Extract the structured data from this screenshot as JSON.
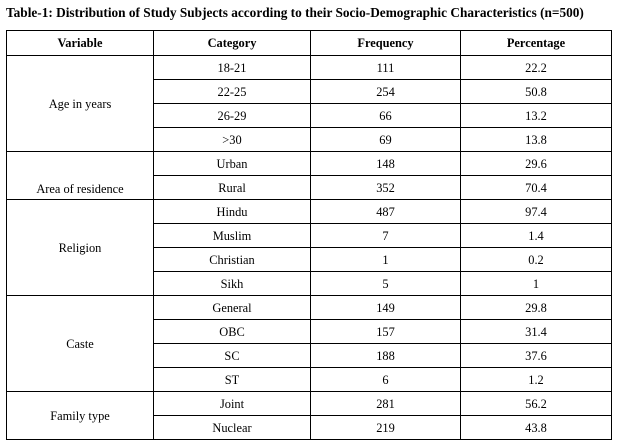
{
  "caption": "Table-1: Distribution of Study Subjects according to their Socio-Demographic Characteristics (n=500)",
  "headers": {
    "variable": "Variable",
    "category": "Category",
    "frequency": "Frequency",
    "percentage": "Percentage"
  },
  "groups": [
    {
      "variable": "Age in years",
      "rows": [
        {
          "category": "18-21",
          "frequency": "111",
          "percentage": "22.2"
        },
        {
          "category": "22-25",
          "frequency": "254",
          "percentage": "50.8"
        },
        {
          "category": "26-29",
          "frequency": "66",
          "percentage": "13.2"
        },
        {
          "category": ">30",
          "frequency": "69",
          "percentage": "13.8"
        }
      ]
    },
    {
      "variable": "Area of residence",
      "rows": [
        {
          "category": "Urban",
          "frequency": "148",
          "percentage": "29.6"
        },
        {
          "category": "Rural",
          "frequency": "352",
          "percentage": "70.4"
        }
      ]
    },
    {
      "variable": "Religion",
      "rows": [
        {
          "category": "Hindu",
          "frequency": "487",
          "percentage": "97.4"
        },
        {
          "category": "Muslim",
          "frequency": "7",
          "percentage": "1.4"
        },
        {
          "category": "Christian",
          "frequency": "1",
          "percentage": "0.2"
        },
        {
          "category": "Sikh",
          "frequency": "5",
          "percentage": "1"
        }
      ]
    },
    {
      "variable": "Caste",
      "rows": [
        {
          "category": "General",
          "frequency": "149",
          "percentage": "29.8"
        },
        {
          "category": "OBC",
          "frequency": "157",
          "percentage": "31.4"
        },
        {
          "category": "SC",
          "frequency": "188",
          "percentage": "37.6"
        },
        {
          "category": "ST",
          "frequency": "6",
          "percentage": "1.2"
        }
      ]
    },
    {
      "variable": "Family type",
      "rows": [
        {
          "category": "Joint",
          "frequency": "281",
          "percentage": "56.2"
        },
        {
          "category": "Nuclear",
          "frequency": "219",
          "percentage": "43.8"
        }
      ]
    }
  ]
}
